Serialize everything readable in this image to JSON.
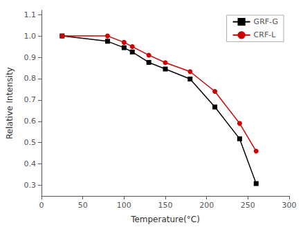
{
  "chart_data": {
    "type": "line",
    "xlabel": "Temperature(°C)",
    "ylabel": "Relative Intensity",
    "xlim": [
      0,
      300
    ],
    "ylim": [
      0.25,
      1.12
    ],
    "xticks": [
      0,
      50,
      100,
      150,
      200,
      250,
      300
    ],
    "yticks": [
      0.3,
      0.4,
      0.5,
      0.6,
      0.7,
      0.8,
      0.9,
      {
        "value": 1.0,
        "label": "1.0"
      },
      1.1
    ],
    "grid": false,
    "legend": "upper right",
    "series": [
      {
        "name": "GRF-G",
        "color": "#000000",
        "marker": "square",
        "line_style": "solid",
        "x": [
          25,
          80,
          100,
          110,
          130,
          150,
          180,
          210,
          240,
          260
        ],
        "values": [
          1.0,
          0.975,
          0.945,
          0.925,
          0.876,
          0.845,
          0.798,
          0.667,
          0.518,
          0.308
        ]
      },
      {
        "name": "CRF-L",
        "color": "#cc0000",
        "marker": "circle",
        "line_style": "solid",
        "x": [
          25,
          80,
          100,
          110,
          130,
          150,
          180,
          210,
          240,
          260
        ],
        "values": [
          1.0,
          1.0,
          0.97,
          0.95,
          0.91,
          0.875,
          0.833,
          0.74,
          0.59,
          0.46
        ]
      }
    ]
  }
}
